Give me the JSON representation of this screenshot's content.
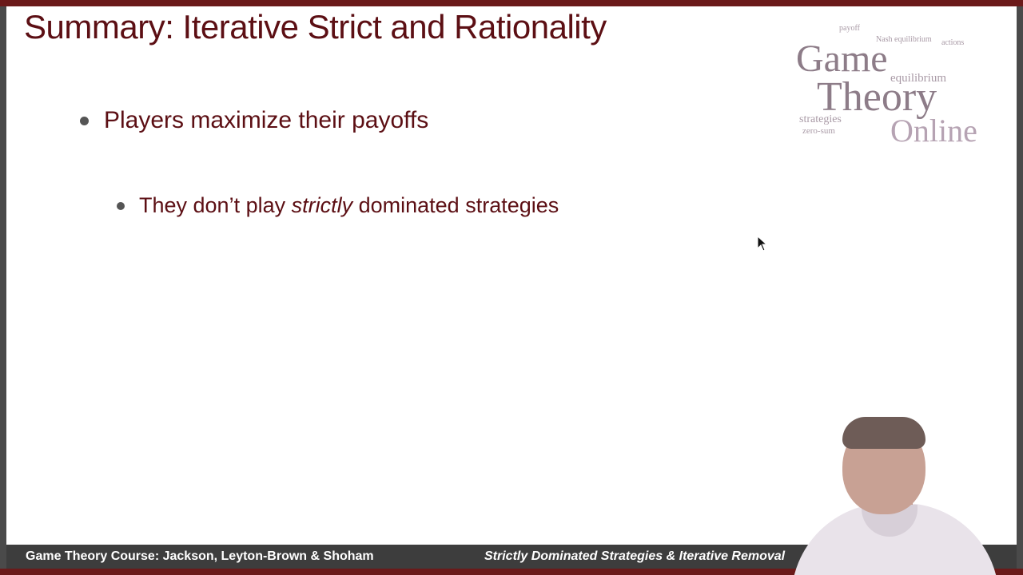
{
  "slide": {
    "title": "Summary: Iterative Strict and Rationality",
    "bullets": [
      {
        "text": "Players maximize their payoffs"
      }
    ],
    "sub_bullet": {
      "before": "They don’t play ",
      "emphasis": "strictly",
      "after": " dominated strategies"
    }
  },
  "logo": {
    "line1": "Game",
    "line2": "Theory",
    "line3": "Online",
    "cloud_words": [
      "payoff",
      "Nash equilibrium",
      "actions",
      "equilibrium",
      "strategies",
      "zero-sum"
    ]
  },
  "footer": {
    "left": "Game Theory Course: Jackson, Leyton-Brown & Shoham",
    "right": "Strictly Dominated Strategies & Iterative Removal"
  },
  "colors": {
    "title": "#5c0f14",
    "accent_bar": "#6b1a1a",
    "footer_bg": "#3d3d3d"
  },
  "icons": {
    "cursor": "mouse-pointer-icon",
    "bullet": "bullet-dot-icon"
  }
}
